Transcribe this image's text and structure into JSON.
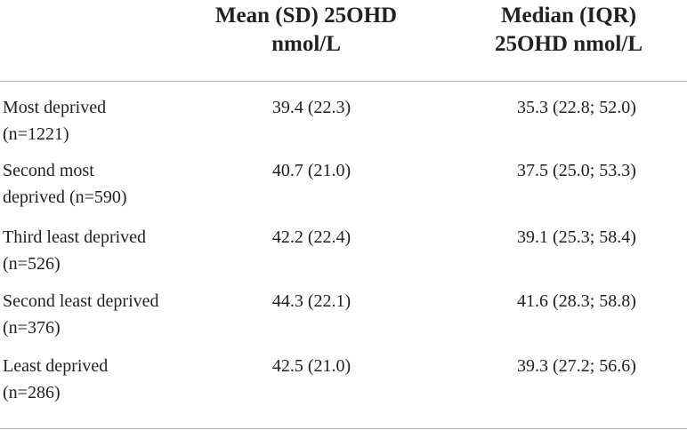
{
  "table": {
    "headers": {
      "mean_line1": "Mean (SD) 25OHD",
      "mean_line2": "nmol/L",
      "median_line1": "Median (IQR)",
      "median_line2": "25OHD nmol/L"
    },
    "rows": [
      {
        "label_line1": "Most deprived",
        "label_line2": "(n=1221)",
        "mean": "39.4 (22.3)",
        "median": "35.3 (22.8; 52.0)"
      },
      {
        "label_line1": "Second most",
        "label_line2": "deprived (n=590)",
        "mean": "40.7 (21.0)",
        "median": "37.5 (25.0; 53.3)"
      },
      {
        "label_line1": "Third least deprived",
        "label_line2": "(n=526)",
        "mean": "42.2 (22.4)",
        "median": "39.1 (25.3; 58.4)"
      },
      {
        "label_line1": "Second least deprived",
        "label_line2": "(n=376)",
        "mean": "44.3 (22.1)",
        "median": "41.6 (28.3; 58.8)"
      },
      {
        "label_line1": "Least deprived",
        "label_line2": "(n=286)",
        "mean": "42.5 (21.0)",
        "median": "39.3 (27.2; 56.6)"
      }
    ]
  }
}
